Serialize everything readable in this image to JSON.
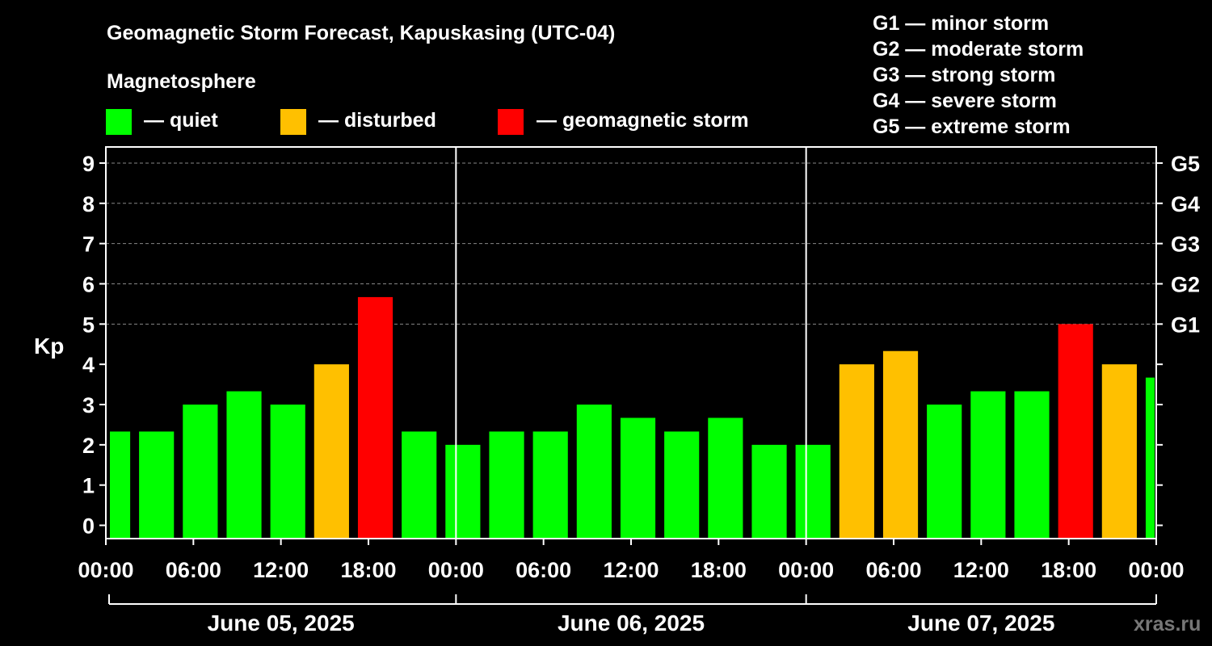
{
  "title": "Geomagnetic Storm Forecast, Kapuskasing (UTC-04)",
  "legend": {
    "heading": "Magnetosphere",
    "items": [
      {
        "label": "— quiet",
        "color": "#00ff00"
      },
      {
        "label": "— disturbed",
        "color": "#ffc000"
      },
      {
        "label": "— geomagnetic storm",
        "color": "#ff0000"
      }
    ]
  },
  "storm_scale": [
    "G1 — minor storm",
    "G2 — moderate storm",
    "G3 — strong storm",
    "G4 — severe storm",
    "G5 — extreme storm"
  ],
  "watermark": "xras.ru",
  "colors": {
    "quiet": "#00ff00",
    "disturbed": "#ffc000",
    "storm": "#ff0000",
    "background": "#000000"
  },
  "chart_data": {
    "type": "bar",
    "ylabel": "Kp",
    "ylim": [
      -0.33,
      9.4
    ],
    "yticks": [
      0,
      1,
      2,
      3,
      4,
      5,
      6,
      7,
      8,
      9
    ],
    "right_ticks": [
      {
        "value": 5,
        "label": "G1"
      },
      {
        "value": 6,
        "label": "G2"
      },
      {
        "value": 7,
        "label": "G3"
      },
      {
        "value": 8,
        "label": "G4"
      },
      {
        "value": 9,
        "label": "G5"
      }
    ],
    "grid": true,
    "x_hours_range": [
      0,
      72
    ],
    "xtick_labels": [
      "00:00",
      "06:00",
      "12:00",
      "18:00",
      "00:00",
      "06:00",
      "12:00",
      "18:00",
      "00:00",
      "06:00",
      "12:00",
      "18:00",
      "00:00"
    ],
    "day_labels": [
      "June 05, 2025",
      "June 06, 2025",
      "June 07, 2025"
    ],
    "bars": [
      {
        "start_hour": 0,
        "kp": 2.33,
        "level": "quiet"
      },
      {
        "start_hour": 2,
        "kp": 2.33,
        "level": "quiet"
      },
      {
        "start_hour": 5,
        "kp": 3.0,
        "level": "quiet"
      },
      {
        "start_hour": 8,
        "kp": 3.33,
        "level": "quiet"
      },
      {
        "start_hour": 11,
        "kp": 3.0,
        "level": "quiet"
      },
      {
        "start_hour": 14,
        "kp": 4.0,
        "level": "disturbed"
      },
      {
        "start_hour": 17,
        "kp": 5.67,
        "level": "storm"
      },
      {
        "start_hour": 20,
        "kp": 2.33,
        "level": "quiet"
      },
      {
        "start_hour": 23,
        "kp": 2.0,
        "level": "quiet"
      },
      {
        "start_hour": 26,
        "kp": 2.33,
        "level": "quiet"
      },
      {
        "start_hour": 29,
        "kp": 2.33,
        "level": "quiet"
      },
      {
        "start_hour": 32,
        "kp": 3.0,
        "level": "quiet"
      },
      {
        "start_hour": 35,
        "kp": 2.67,
        "level": "quiet"
      },
      {
        "start_hour": 38,
        "kp": 2.33,
        "level": "quiet"
      },
      {
        "start_hour": 41,
        "kp": 2.67,
        "level": "quiet"
      },
      {
        "start_hour": 44,
        "kp": 2.0,
        "level": "quiet"
      },
      {
        "start_hour": 47,
        "kp": 2.0,
        "level": "quiet"
      },
      {
        "start_hour": 50,
        "kp": 4.0,
        "level": "disturbed"
      },
      {
        "start_hour": 53,
        "kp": 4.33,
        "level": "disturbed"
      },
      {
        "start_hour": 56,
        "kp": 3.0,
        "level": "quiet"
      },
      {
        "start_hour": 59,
        "kp": 3.33,
        "level": "quiet"
      },
      {
        "start_hour": 62,
        "kp": 3.33,
        "level": "quiet"
      },
      {
        "start_hour": 65,
        "kp": 5.0,
        "level": "storm"
      },
      {
        "start_hour": 68,
        "kp": 4.0,
        "level": "disturbed"
      },
      {
        "start_hour": 71,
        "kp": 3.67,
        "level": "quiet"
      }
    ]
  }
}
